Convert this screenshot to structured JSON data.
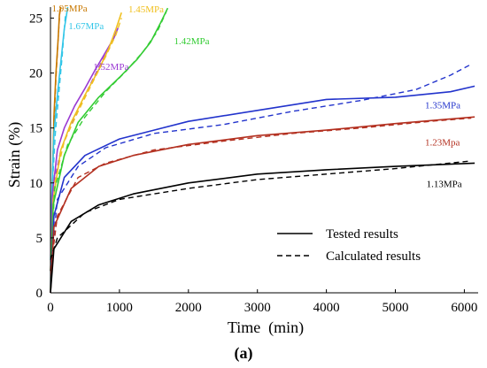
{
  "chart_data": {
    "type": "line",
    "caption": "(a)",
    "xlabel": "Time (min)",
    "ylabel": "Strain (%)",
    "xlim": [
      0,
      6200
    ],
    "ylim": [
      0,
      26
    ],
    "xticks": [
      0,
      1000,
      2000,
      3000,
      4000,
      5000,
      6000
    ],
    "yticks": [
      0,
      5,
      10,
      15,
      20,
      25
    ],
    "grid": false,
    "legend": {
      "position": "lower-right",
      "items": [
        {
          "style": "solid",
          "label": "Tested results"
        },
        {
          "style": "dashed",
          "label": "Calculated results"
        }
      ]
    },
    "series": [
      {
        "name": "1.95MPa",
        "color": "#c87800",
        "tested_x": [
          0,
          20,
          50,
          80,
          110,
          130,
          150
        ],
        "tested_y": [
          0,
          8,
          16,
          20,
          23,
          25.3,
          26
        ],
        "calculated_x": [
          0,
          20,
          50,
          80,
          110,
          140
        ],
        "calculated_y": [
          2,
          9,
          15,
          19.5,
          23,
          26
        ]
      },
      {
        "name": "1.67MPa",
        "color": "#33c6e8",
        "tested_x": [
          0,
          20,
          50,
          100,
          150,
          200,
          250
        ],
        "tested_y": [
          0,
          9,
          14.5,
          18,
          21,
          24,
          26
        ],
        "calculated_x": [
          0,
          30,
          70,
          120,
          170,
          220
        ],
        "calculated_y": [
          3,
          10,
          14.5,
          18,
          21.5,
          25.5
        ]
      },
      {
        "name": "1.52MPa",
        "color": "#9a3ad2",
        "tested_x": [
          0,
          30,
          100,
          200,
          350,
          500,
          650,
          800,
          920,
          980
        ],
        "tested_y": [
          0,
          9,
          13,
          15,
          17,
          18.6,
          20.3,
          21.9,
          23.2,
          24.1
        ],
        "calculated_x": [
          0,
          50,
          150,
          300,
          500,
          700,
          850,
          950
        ],
        "calculated_y": [
          2,
          10,
          13,
          15.3,
          18,
          20.5,
          22.3,
          24
        ]
      },
      {
        "name": "1.45MPa",
        "color": "#f0c020",
        "tested_x": [
          0,
          40,
          150,
          300,
          500,
          700,
          850,
          950,
          1030
        ],
        "tested_y": [
          0,
          8.5,
          13,
          15.5,
          18,
          20.3,
          22.3,
          24,
          25.5
        ],
        "calculated_x": [
          0,
          60,
          200,
          400,
          600,
          800,
          950,
          1030
        ],
        "calculated_y": [
          2,
          10,
          13.8,
          16.5,
          19,
          21.5,
          23.5,
          25
        ]
      },
      {
        "name": "1.42MPa",
        "color": "#33cc33",
        "tested_x": [
          0,
          40,
          200,
          400,
          700,
          1000,
          1250,
          1450,
          1600,
          1700
        ],
        "tested_y": [
          0,
          8,
          12.5,
          15.5,
          17.8,
          19.6,
          21.2,
          22.8,
          24.6,
          25.9
        ],
        "calculated_x": [
          0,
          60,
          250,
          500,
          800,
          1100,
          1350,
          1550,
          1680
        ],
        "calculated_y": [
          2,
          9.5,
          13.5,
          16,
          18.3,
          20.2,
          22,
          23.8,
          25.6
        ]
      },
      {
        "name": "1.35MPa",
        "color": "#2233cc",
        "tested_x": [
          0,
          50,
          200,
          500,
          1000,
          1500,
          2000,
          3000,
          4000,
          5000,
          5800,
          6150
        ],
        "tested_y": [
          0,
          7,
          10.5,
          12.5,
          14,
          14.8,
          15.6,
          16.6,
          17.6,
          17.8,
          18.3,
          18.8
        ],
        "calculated_x": [
          0,
          100,
          400,
          800,
          1500,
          2500,
          3500,
          4500,
          5300,
          5800,
          6100
        ],
        "calculated_y": [
          2,
          8.5,
          11.5,
          13.2,
          14.5,
          15.3,
          16.5,
          17.5,
          18.5,
          19.8,
          20.8
        ]
      },
      {
        "name": "1.23Mpa",
        "color": "#b33020",
        "tested_x": [
          0,
          50,
          300,
          700,
          1200,
          2000,
          3000,
          4000,
          5000,
          6150
        ],
        "tested_y": [
          0,
          6,
          9.5,
          11.5,
          12.5,
          13.5,
          14.3,
          14.8,
          15.4,
          16
        ],
        "calculated_x": [
          0,
          100,
          400,
          800,
          1500,
          2500,
          3500,
          4500,
          5500,
          6100
        ],
        "calculated_y": [
          2,
          7,
          10.5,
          11.8,
          13,
          13.8,
          14.5,
          15,
          15.6,
          15.9
        ]
      },
      {
        "name": "1.13MPa",
        "color": "#000000",
        "tested_x": [
          0,
          50,
          300,
          700,
          1200,
          2000,
          3000,
          4000,
          5000,
          6150
        ],
        "tested_y": [
          0,
          4,
          6.5,
          8,
          9,
          10,
          10.8,
          11.2,
          11.5,
          11.8
        ],
        "calculated_x": [
          0,
          100,
          500,
          1000,
          2000,
          3000,
          4000,
          5000,
          6100
        ],
        "calculated_y": [
          3,
          5,
          7.3,
          8.5,
          9.5,
          10.3,
          10.8,
          11.3,
          12
        ]
      }
    ]
  }
}
